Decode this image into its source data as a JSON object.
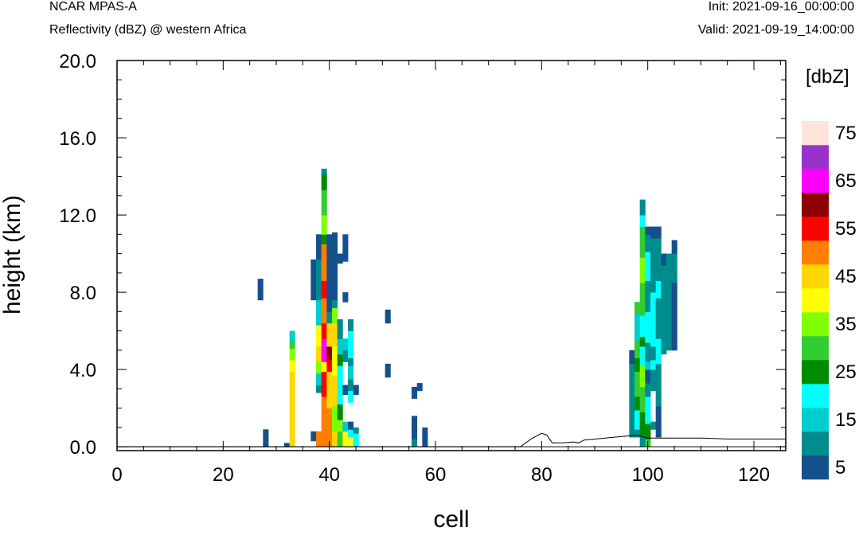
{
  "header": {
    "left_title": "NCAR MPAS-A",
    "left_subtitle": "Reflectivity (dBZ) @ western Africa",
    "right_init": "Init: 2021-09-16_00:00:00",
    "right_valid": "Valid: 2021-09-19_14:00:00"
  },
  "colorbar": {
    "title": "[dbZ]",
    "levels": [
      5,
      10,
      15,
      20,
      25,
      30,
      35,
      40,
      45,
      50,
      55,
      60,
      65,
      70,
      75
    ],
    "labels": [
      "5",
      "15",
      "25",
      "35",
      "45",
      "55",
      "65",
      "75"
    ],
    "colors": [
      "#15508C",
      "#008C8C",
      "#00CDCD",
      "#00FFFF",
      "#008B00",
      "#32CD32",
      "#7FFF00",
      "#FFFF00",
      "#FFD700",
      "#FF7F00",
      "#FF0000",
      "#8B0000",
      "#FF00FF",
      "#9932CC",
      "#FFE4DA"
    ]
  },
  "chart_data": {
    "type": "heatmap",
    "title": "Reflectivity (dBZ) @ western Africa",
    "xlabel": "cell",
    "ylabel": "height (km)",
    "xlim": [
      0,
      126
    ],
    "ylim": [
      -0.2,
      20
    ],
    "xticks": [
      "0",
      "20",
      "40",
      "60",
      "80",
      "100",
      "120"
    ],
    "yticks": [
      "0.0",
      "4.0",
      "8.0",
      "12.0",
      "16.0",
      "20.0"
    ],
    "cell_height_km": 0.55,
    "columns": [
      {
        "x": 27,
        "cells": [
          [
            7.6,
            8.7,
            5
          ]
        ]
      },
      {
        "x": 28,
        "cells": [
          [
            0.0,
            0.9,
            5
          ]
        ]
      },
      {
        "x": 32,
        "cells": [
          [
            0.0,
            0.2,
            5
          ]
        ]
      },
      {
        "x": 33,
        "cells": [
          [
            0.0,
            3.9,
            45
          ],
          [
            3.9,
            4.5,
            40
          ],
          [
            4.5,
            5.1,
            35
          ],
          [
            5.1,
            5.5,
            30
          ],
          [
            5.5,
            6.0,
            15
          ]
        ]
      },
      {
        "x": 37,
        "cells": [
          [
            0.3,
            0.8,
            5
          ],
          [
            7.6,
            9.7,
            5
          ]
        ]
      },
      {
        "x": 38,
        "cells": [
          [
            0.0,
            0.8,
            50
          ],
          [
            2.8,
            3.2,
            10
          ],
          [
            3.2,
            3.8,
            15
          ],
          [
            3.8,
            4.4,
            35
          ],
          [
            4.4,
            5.2,
            45
          ],
          [
            5.2,
            6.3,
            40
          ],
          [
            6.3,
            7.6,
            15
          ],
          [
            7.6,
            9.7,
            10
          ],
          [
            9.7,
            11.0,
            5
          ]
        ]
      },
      {
        "x": 39,
        "cells": [
          [
            0.0,
            2.6,
            50
          ],
          [
            2.6,
            3.9,
            55
          ],
          [
            3.9,
            4.4,
            40
          ],
          [
            4.4,
            5.6,
            65
          ],
          [
            5.6,
            6.4,
            55
          ],
          [
            6.4,
            7.7,
            50
          ],
          [
            7.7,
            8.6,
            55
          ],
          [
            8.6,
            10.5,
            50
          ],
          [
            10.5,
            11.0,
            25
          ],
          [
            11.0,
            12.0,
            35
          ],
          [
            12.0,
            13.3,
            30
          ],
          [
            13.3,
            14.1,
            25
          ],
          [
            14.1,
            14.4,
            10
          ]
        ]
      },
      {
        "x": 40,
        "cells": [
          [
            0.0,
            2.0,
            50
          ],
          [
            2.0,
            3.9,
            45
          ],
          [
            3.9,
            4.5,
            55
          ],
          [
            4.5,
            5.2,
            60
          ],
          [
            5.2,
            6.4,
            45
          ],
          [
            6.4,
            7.0,
            10
          ],
          [
            7.0,
            9.5,
            5
          ],
          [
            9.5,
            11.0,
            5
          ]
        ]
      },
      {
        "x": 41,
        "cells": [
          [
            0.0,
            0.8,
            45
          ],
          [
            0.8,
            2.1,
            35
          ],
          [
            2.1,
            3.7,
            45
          ],
          [
            3.7,
            5.2,
            40
          ],
          [
            5.2,
            6.4,
            45
          ],
          [
            6.4,
            7.2,
            35
          ],
          [
            7.2,
            7.6,
            10
          ],
          [
            7.6,
            8.6,
            5
          ],
          [
            8.6,
            9.6,
            5
          ],
          [
            9.6,
            11.1,
            5
          ]
        ]
      },
      {
        "x": 42,
        "cells": [
          [
            0.0,
            0.8,
            30
          ],
          [
            0.8,
            1.4,
            35
          ],
          [
            1.4,
            2.2,
            25
          ],
          [
            2.2,
            4.2,
            20
          ],
          [
            4.2,
            4.8,
            25
          ],
          [
            4.8,
            5.6,
            15
          ],
          [
            5.6,
            6.6,
            10
          ],
          [
            9.5,
            10.0,
            5
          ]
        ]
      },
      {
        "x": 43,
        "cells": [
          [
            0.0,
            0.8,
            40
          ],
          [
            0.8,
            1.3,
            15
          ],
          [
            2.7,
            3.2,
            5
          ],
          [
            4.4,
            5.0,
            10
          ],
          [
            5.0,
            5.6,
            15
          ],
          [
            7.5,
            8.0,
            5
          ],
          [
            9.6,
            11.0,
            5
          ]
        ]
      },
      {
        "x": 44,
        "cells": [
          [
            0.0,
            0.5,
            40
          ],
          [
            0.5,
            0.9,
            20
          ],
          [
            0.9,
            1.3,
            5
          ],
          [
            2.3,
            2.9,
            20
          ],
          [
            2.9,
            3.5,
            10
          ],
          [
            3.5,
            4.2,
            15
          ],
          [
            4.2,
            4.6,
            10
          ],
          [
            4.6,
            6.0,
            20
          ],
          [
            6.0,
            6.6,
            10
          ]
        ]
      },
      {
        "x": 45,
        "cells": [
          [
            0.0,
            0.7,
            20
          ],
          [
            0.7,
            1.0,
            10
          ],
          [
            2.7,
            3.2,
            5
          ]
        ]
      },
      {
        "x": 51,
        "cells": [
          [
            3.6,
            4.3,
            5
          ],
          [
            6.4,
            7.1,
            5
          ]
        ]
      },
      {
        "x": 56,
        "cells": [
          [
            0.0,
            0.4,
            10
          ],
          [
            0.4,
            1.6,
            5
          ],
          [
            2.5,
            3.1,
            5
          ]
        ]
      },
      {
        "x": 57,
        "cells": [
          [
            2.9,
            3.3,
            5
          ]
        ]
      },
      {
        "x": 58,
        "cells": [
          [
            0.0,
            1.0,
            5
          ]
        ]
      },
      {
        "x": 97,
        "cells": [
          [
            0.5,
            1.4,
            10
          ],
          [
            1.4,
            2.7,
            10
          ],
          [
            2.7,
            4.3,
            10
          ],
          [
            4.3,
            5.0,
            5
          ]
        ]
      },
      {
        "x": 98,
        "cells": [
          [
            0.5,
            0.9,
            10
          ],
          [
            0.9,
            1.9,
            20
          ],
          [
            1.9,
            2.6,
            25
          ],
          [
            2.6,
            3.9,
            30
          ],
          [
            3.9,
            4.6,
            25
          ],
          [
            4.6,
            5.5,
            30
          ],
          [
            5.5,
            6.9,
            15
          ],
          [
            6.9,
            7.5,
            30
          ]
        ]
      },
      {
        "x": 99,
        "cells": [
          [
            0.0,
            0.6,
            10
          ],
          [
            0.6,
            1.8,
            25
          ],
          [
            1.8,
            3.1,
            30
          ],
          [
            3.1,
            4.2,
            35
          ],
          [
            4.2,
            5.2,
            20
          ],
          [
            5.2,
            5.7,
            25
          ],
          [
            5.7,
            6.8,
            20
          ],
          [
            6.8,
            8.5,
            30
          ],
          [
            8.5,
            9.8,
            35
          ],
          [
            9.8,
            11.4,
            30
          ],
          [
            11.4,
            12.0,
            20
          ],
          [
            12.0,
            12.8,
            10
          ]
        ]
      },
      {
        "x": 100,
        "cells": [
          [
            0.0,
            0.4,
            30
          ],
          [
            0.4,
            1.2,
            25
          ],
          [
            1.2,
            2.6,
            20
          ],
          [
            2.6,
            3.3,
            10
          ],
          [
            3.3,
            4.0,
            5
          ],
          [
            4.0,
            4.4,
            15
          ],
          [
            4.4,
            5.4,
            10
          ],
          [
            5.4,
            7.0,
            20
          ],
          [
            7.0,
            8.6,
            10
          ],
          [
            8.6,
            10.1,
            20
          ],
          [
            10.1,
            11.0,
            10
          ],
          [
            11.0,
            11.4,
            5
          ]
        ]
      },
      {
        "x": 101,
        "cells": [
          [
            0.9,
            1.3,
            10
          ],
          [
            2.9,
            4.0,
            10
          ],
          [
            4.0,
            4.5,
            20
          ],
          [
            4.5,
            5.2,
            10
          ],
          [
            5.2,
            8.0,
            20
          ],
          [
            8.0,
            9.4,
            10
          ],
          [
            9.4,
            10.8,
            10
          ],
          [
            10.8,
            11.4,
            5
          ]
        ]
      },
      {
        "x": 102,
        "cells": [
          [
            0.5,
            2.1,
            5
          ],
          [
            2.1,
            2.6,
            10
          ],
          [
            2.6,
            4.3,
            10
          ],
          [
            4.3,
            5.6,
            20
          ],
          [
            5.6,
            7.7,
            10
          ],
          [
            7.7,
            8.6,
            20
          ],
          [
            8.6,
            9.7,
            10
          ],
          [
            9.7,
            10.8,
            10
          ],
          [
            10.8,
            11.4,
            5
          ]
        ]
      },
      {
        "x": 103,
        "cells": [
          [
            4.8,
            5.6,
            10
          ],
          [
            5.6,
            6.8,
            10
          ],
          [
            6.8,
            8.6,
            10
          ],
          [
            8.6,
            9.4,
            10
          ],
          [
            9.4,
            10.0,
            5
          ]
        ]
      },
      {
        "x": 104,
        "cells": [
          [
            5.0,
            6.4,
            10
          ],
          [
            6.4,
            9.4,
            10
          ],
          [
            9.4,
            10.0,
            10
          ]
        ]
      },
      {
        "x": 105,
        "cells": [
          [
            5.0,
            8.5,
            5
          ],
          [
            8.5,
            10.0,
            10
          ],
          [
            10.0,
            10.7,
            5
          ]
        ]
      }
    ],
    "terrain": {
      "x": [
        0,
        76,
        78,
        80,
        81,
        82,
        84,
        86,
        87,
        88,
        92,
        96,
        98,
        100,
        105,
        110,
        115,
        120,
        126
      ],
      "y": [
        0.0,
        0.0,
        0.4,
        0.7,
        0.6,
        0.2,
        0.2,
        0.25,
        0.2,
        0.35,
        0.45,
        0.55,
        0.6,
        0.45,
        0.45,
        0.45,
        0.4,
        0.4,
        0.4
      ]
    }
  }
}
